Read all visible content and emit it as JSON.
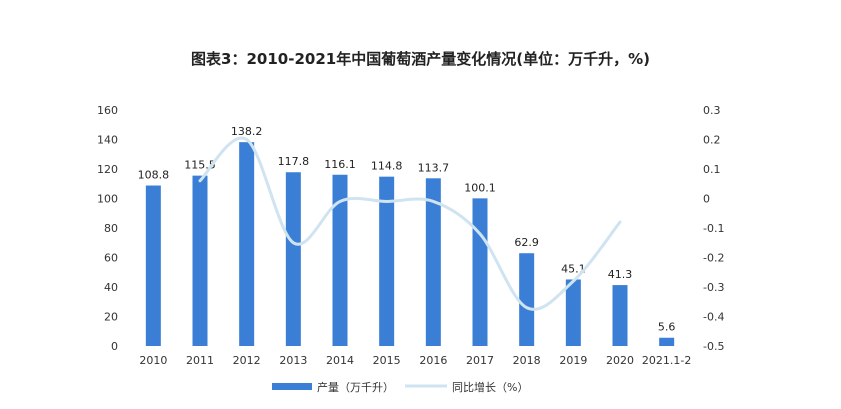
{
  "chart_data": {
    "type": "bar",
    "title": "图表3：2010-2021年中国葡萄酒产量变化情况(单位：万千升，%)",
    "categories": [
      "2010",
      "2011",
      "2012",
      "2013",
      "2014",
      "2015",
      "2016",
      "2017",
      "2018",
      "2019",
      "2020",
      "2021.1-2"
    ],
    "series": [
      {
        "name": "产量（万千升）",
        "type": "bar",
        "axis": "left",
        "values": [
          108.8,
          115.5,
          138.2,
          117.8,
          116.1,
          114.8,
          113.7,
          100.1,
          62.9,
          45.1,
          41.3,
          5.6
        ],
        "data_labels": [
          "108.8",
          "115.5",
          "138.2",
          "117.8",
          "116.1",
          "114.8",
          "113.7",
          "100.1",
          "62.9",
          "45.1",
          "41.3",
          "5.6"
        ]
      },
      {
        "name": "同比增长（%）",
        "type": "line",
        "axis": "right",
        "smooth": true,
        "values": [
          null,
          0.06,
          0.2,
          -0.15,
          -0.01,
          -0.01,
          -0.01,
          -0.12,
          -0.37,
          -0.28,
          -0.08,
          null
        ]
      }
    ],
    "y_left": {
      "min": 0,
      "max": 160,
      "ticks": [
        "0",
        "20",
        "40",
        "60",
        "80",
        "100",
        "120",
        "140",
        "160"
      ]
    },
    "y_right": {
      "min": -0.5,
      "max": 0.3,
      "ticks": [
        "-0.5",
        "-0.4",
        "-0.3",
        "-0.2",
        "-0.1",
        "0",
        "0.1",
        "0.2",
        "0.3"
      ]
    },
    "legend_position": "bottom",
    "grid": false,
    "colors": {
      "bar": "#3a7fd5",
      "line": "#cfe4f0"
    }
  }
}
